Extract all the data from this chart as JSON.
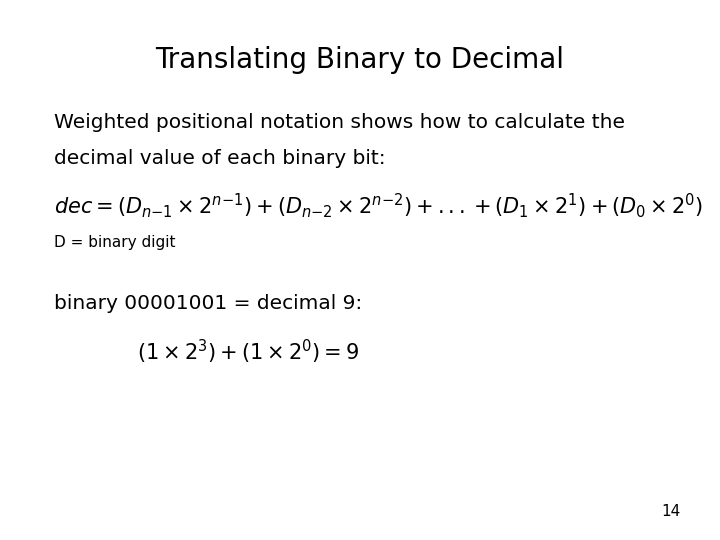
{
  "title": "Translating Binary to Decimal",
  "background_color": "#ffffff",
  "text_color": "#000000",
  "title_fontsize": 20,
  "body_fontsize": 14.5,
  "formula_fontsize": 15,
  "small_fontsize": 11,
  "page_number": "14",
  "paragraph1_line1": "Weighted positional notation shows how to calculate the",
  "paragraph1_line2": "decimal value of each binary bit:",
  "label_D": "D = binary digit",
  "paragraph2_line1": "binary 00001001 = decimal 9:",
  "fig_width": 7.2,
  "fig_height": 5.4,
  "dpi": 100
}
